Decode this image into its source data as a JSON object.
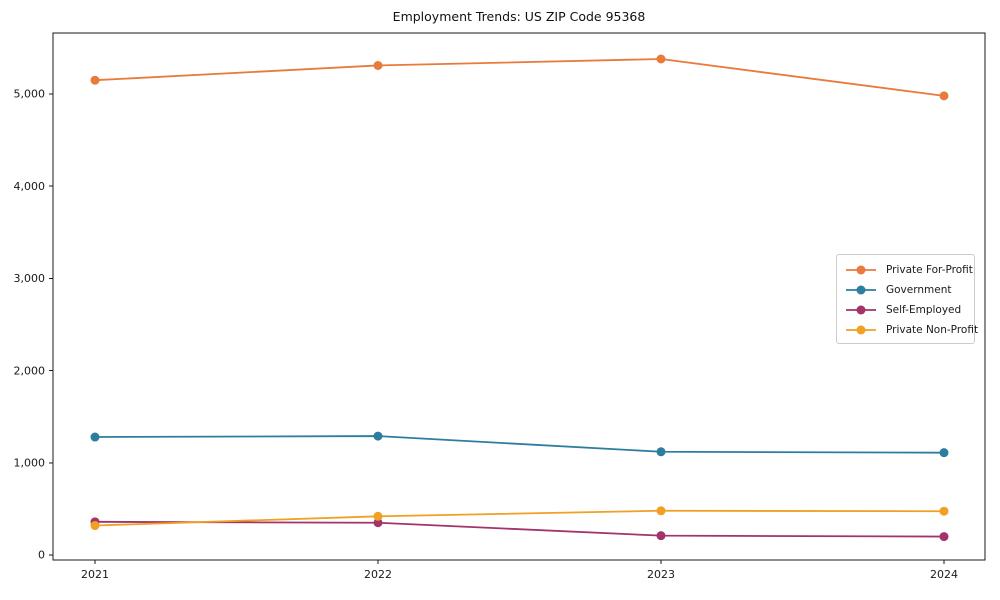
{
  "chart_data": {
    "type": "line",
    "title": "Employment Trends: US ZIP Code 95368",
    "categories": [
      "2021",
      "2022",
      "2023",
      "2024"
    ],
    "series": [
      {
        "name": "Private For-Profit",
        "color": "#e87a3c",
        "values": [
          5150,
          5310,
          5380,
          4980
        ]
      },
      {
        "name": "Government",
        "color": "#2d7e9e",
        "values": [
          1280,
          1290,
          1120,
          1110
        ]
      },
      {
        "name": "Self-Employed",
        "color": "#a2336b",
        "values": [
          360,
          350,
          210,
          200
        ]
      },
      {
        "name": "Private Non-Profit",
        "color": "#f0a023",
        "values": [
          320,
          420,
          480,
          475
        ]
      }
    ],
    "xlabel": "",
    "ylabel": "",
    "ylim": [
      -54,
      5662
    ],
    "y_ticks": [
      0,
      1000,
      2000,
      3000,
      4000,
      5000
    ],
    "y_tick_labels": [
      "0",
      "1,000",
      "2,000",
      "3,000",
      "4,000",
      "5,000"
    ],
    "grid": false,
    "legend_position": "right-center",
    "marker": "circle",
    "axis_color": "#1a1a1a"
  }
}
